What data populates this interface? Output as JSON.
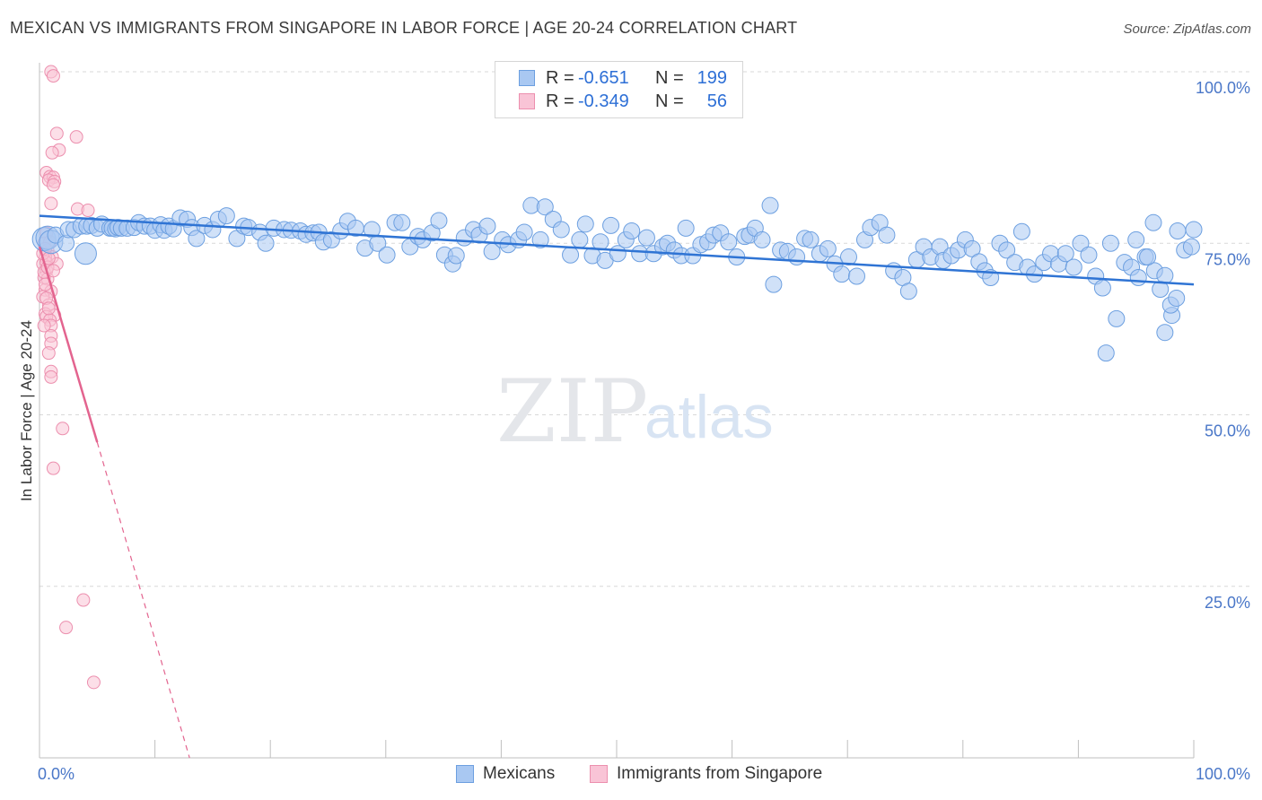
{
  "title": "MEXICAN VS IMMIGRANTS FROM SINGAPORE IN LABOR FORCE | AGE 20-24 CORRELATION CHART",
  "source": "Source: ZipAtlas.com",
  "watermark": {
    "zip": "ZIP",
    "atlas": "atlas"
  },
  "legend": {
    "rows": [
      {
        "r_label": "R =",
        "r_value": "-0.651",
        "n_label": "N =",
        "n_value": "199",
        "color": "#a9c8f2",
        "border": "#6c9fe0"
      },
      {
        "r_label": "R =",
        "r_value": "-0.349",
        "n_label": "N =",
        "n_value": "56",
        "color": "#f9c4d6",
        "border": "#ec8fae"
      }
    ]
  },
  "bottom_legend": [
    {
      "label": "Mexicans",
      "color": "#a9c8f2",
      "border": "#6c9fe0"
    },
    {
      "label": "Immigrants from Singapore",
      "color": "#f9c4d6",
      "border": "#ec8fae"
    }
  ],
  "chart_data": {
    "type": "scatter",
    "ylabel": "In Labor Force | Age 20-24",
    "xlabel": "",
    "xlim": [
      0,
      100
    ],
    "ylim": [
      0,
      100
    ],
    "x_tick_labels": [
      "0.0%",
      "100.0%"
    ],
    "y_tick_labels": [
      "100.0%",
      "75.0%",
      "50.0%",
      "25.0%"
    ],
    "y_tick_values": [
      100,
      75,
      50,
      25
    ],
    "grid": "horizontal dashed",
    "series": [
      {
        "name": "Mexicans",
        "color": "#6c9fe0",
        "fill": "#a9c8f2",
        "trend": {
          "x": [
            0,
            100
          ],
          "y": [
            79.0,
            69.0
          ]
        },
        "points": [
          [
            0.4,
            75.6
          ],
          [
            0.7,
            75.8
          ],
          [
            1.0,
            75.2
          ],
          [
            1.4,
            76.2
          ],
          [
            2.3,
            75.0
          ],
          [
            2.5,
            77.0
          ],
          [
            3.0,
            77.0
          ],
          [
            3.6,
            77.5
          ],
          [
            4.1,
            77.5
          ],
          [
            4.5,
            77.6
          ],
          [
            5.0,
            77.2
          ],
          [
            5.4,
            77.8
          ],
          [
            6.1,
            77.2
          ],
          [
            6.3,
            77.2
          ],
          [
            6.6,
            77.1
          ],
          [
            6.8,
            77.3
          ],
          [
            7.1,
            77.2
          ],
          [
            7.6,
            77.2
          ],
          [
            8.2,
            77.3
          ],
          [
            8.6,
            78.0
          ],
          [
            9.1,
            77.5
          ],
          [
            9.6,
            77.5
          ],
          [
            10.0,
            76.9
          ],
          [
            10.5,
            77.7
          ],
          [
            10.8,
            76.9
          ],
          [
            11.2,
            77.5
          ],
          [
            11.6,
            77.1
          ],
          [
            12.2,
            78.7
          ],
          [
            12.8,
            78.5
          ],
          [
            13.2,
            77.3
          ],
          [
            13.6,
            75.7
          ],
          [
            14.3,
            77.6
          ],
          [
            15.0,
            77.0
          ],
          [
            15.5,
            78.5
          ],
          [
            16.2,
            79.0
          ],
          [
            17.1,
            75.7
          ],
          [
            17.7,
            77.5
          ],
          [
            18.1,
            77.3
          ],
          [
            19.1,
            76.6
          ],
          [
            19.6,
            75.0
          ],
          [
            20.3,
            77.2
          ],
          [
            21.2,
            77.0
          ],
          [
            21.8,
            76.9
          ],
          [
            22.6,
            76.8
          ],
          [
            23.1,
            76.3
          ],
          [
            23.7,
            76.5
          ],
          [
            24.2,
            76.6
          ],
          [
            24.6,
            75.2
          ],
          [
            25.3,
            75.5
          ],
          [
            26.1,
            76.8
          ],
          [
            26.7,
            78.2
          ],
          [
            27.4,
            77.2
          ],
          [
            28.2,
            74.3
          ],
          [
            28.8,
            77.0
          ],
          [
            29.3,
            75.0
          ],
          [
            30.1,
            73.3
          ],
          [
            30.8,
            78.0
          ],
          [
            31.4,
            78.0
          ],
          [
            32.1,
            74.5
          ],
          [
            32.8,
            76.0
          ],
          [
            33.2,
            75.5
          ],
          [
            34.0,
            76.5
          ],
          [
            34.6,
            78.3
          ],
          [
            35.1,
            73.3
          ],
          [
            35.8,
            72.0
          ],
          [
            36.1,
            73.2
          ],
          [
            36.8,
            75.8
          ],
          [
            37.6,
            77.0
          ],
          [
            38.1,
            76.2
          ],
          [
            38.8,
            77.5
          ],
          [
            39.2,
            73.8
          ],
          [
            40.1,
            75.5
          ],
          [
            40.6,
            74.8
          ],
          [
            41.5,
            75.5
          ],
          [
            42.0,
            76.6
          ],
          [
            42.6,
            80.5
          ],
          [
            43.4,
            75.5
          ],
          [
            43.8,
            80.3
          ],
          [
            44.5,
            78.5
          ],
          [
            45.2,
            77.0
          ],
          [
            46.0,
            73.3
          ],
          [
            46.8,
            75.5
          ],
          [
            47.3,
            77.8
          ],
          [
            47.9,
            73.2
          ],
          [
            48.6,
            75.2
          ],
          [
            49.0,
            72.5
          ],
          [
            49.5,
            77.6
          ],
          [
            50.1,
            73.5
          ],
          [
            50.8,
            75.5
          ],
          [
            51.3,
            76.8
          ],
          [
            52.0,
            73.5
          ],
          [
            52.6,
            75.8
          ],
          [
            53.2,
            73.5
          ],
          [
            54.0,
            74.5
          ],
          [
            54.4,
            75.0
          ],
          [
            55.0,
            74.0
          ],
          [
            55.6,
            73.2
          ],
          [
            56.0,
            77.2
          ],
          [
            56.6,
            73.2
          ],
          [
            57.3,
            74.8
          ],
          [
            57.9,
            75.2
          ],
          [
            58.4,
            76.2
          ],
          [
            59.0,
            76.5
          ],
          [
            59.7,
            75.2
          ],
          [
            60.4,
            73.0
          ],
          [
            61.1,
            76.0
          ],
          [
            61.5,
            76.2
          ],
          [
            62.0,
            77.2
          ],
          [
            62.6,
            75.5
          ],
          [
            63.3,
            80.5
          ],
          [
            63.6,
            69.0
          ],
          [
            64.2,
            74.0
          ],
          [
            64.8,
            73.8
          ],
          [
            65.6,
            73.0
          ],
          [
            66.3,
            75.7
          ],
          [
            66.8,
            75.5
          ],
          [
            67.6,
            73.5
          ],
          [
            68.3,
            74.2
          ],
          [
            68.9,
            72.0
          ],
          [
            69.5,
            70.5
          ],
          [
            70.1,
            73.0
          ],
          [
            70.8,
            70.2
          ],
          [
            71.5,
            75.5
          ],
          [
            72.0,
            77.3
          ],
          [
            72.8,
            78.0
          ],
          [
            73.4,
            76.2
          ],
          [
            74.0,
            71.0
          ],
          [
            74.8,
            70.0
          ],
          [
            75.3,
            68.0
          ],
          [
            76.0,
            72.6
          ],
          [
            76.6,
            74.5
          ],
          [
            77.2,
            73.0
          ],
          [
            78.0,
            74.5
          ],
          [
            78.3,
            72.5
          ],
          [
            79.0,
            73.2
          ],
          [
            79.6,
            74.0
          ],
          [
            80.2,
            75.5
          ],
          [
            80.8,
            74.2
          ],
          [
            81.4,
            72.3
          ],
          [
            81.9,
            71.0
          ],
          [
            82.4,
            70.0
          ],
          [
            83.2,
            75.0
          ],
          [
            83.8,
            74.0
          ],
          [
            84.5,
            72.2
          ],
          [
            85.1,
            76.7
          ],
          [
            85.6,
            71.5
          ],
          [
            86.2,
            70.5
          ],
          [
            87.0,
            72.2
          ],
          [
            87.6,
            73.5
          ],
          [
            88.3,
            72.0
          ],
          [
            88.9,
            73.5
          ],
          [
            89.6,
            71.5
          ],
          [
            90.2,
            75.0
          ],
          [
            90.9,
            73.3
          ],
          [
            91.5,
            70.2
          ],
          [
            92.1,
            68.5
          ],
          [
            92.8,
            75.0
          ],
          [
            93.3,
            64.0
          ],
          [
            94.0,
            72.2
          ],
          [
            94.6,
            71.5
          ],
          [
            95.2,
            70.0
          ],
          [
            95.8,
            73.0
          ],
          [
            96.6,
            71.0
          ],
          [
            97.1,
            68.3
          ],
          [
            97.5,
            70.3
          ],
          [
            98.1,
            64.5
          ],
          [
            98.6,
            76.8
          ],
          [
            99.2,
            74.0
          ],
          [
            99.8,
            74.5
          ],
          [
            100.0,
            77.0
          ],
          [
            92.4,
            59.0
          ],
          [
            95.0,
            75.5
          ],
          [
            96.0,
            73.0
          ],
          [
            96.5,
            78.0
          ],
          [
            97.5,
            62.0
          ],
          [
            98.0,
            66.0
          ],
          [
            98.5,
            67.0
          ]
        ]
      },
      {
        "name": "Immigrants from Singapore",
        "color": "#ec8fae",
        "fill": "#f9c4d6",
        "trend": {
          "x": [
            0,
            5
          ],
          "y": [
            74.5,
            46.0
          ]
        },
        "trend_dashed": {
          "x": [
            5,
            13
          ],
          "y": [
            46.0,
            0
          ]
        },
        "points": [
          [
            1.0,
            100.0
          ],
          [
            1.2,
            99.4
          ],
          [
            1.5,
            91.0
          ],
          [
            1.7,
            88.6
          ],
          [
            3.2,
            90.5
          ],
          [
            1.1,
            88.2
          ],
          [
            0.6,
            85.3
          ],
          [
            0.9,
            84.7
          ],
          [
            1.2,
            84.6
          ],
          [
            0.8,
            84.2
          ],
          [
            1.3,
            84.0
          ],
          [
            1.2,
            83.5
          ],
          [
            3.3,
            80.0
          ],
          [
            4.2,
            79.8
          ],
          [
            1.0,
            80.8
          ],
          [
            0.6,
            76.5
          ],
          [
            0.4,
            75.0
          ],
          [
            0.7,
            74.0
          ],
          [
            1.1,
            73.0
          ],
          [
            0.5,
            73.0
          ],
          [
            0.3,
            72.0
          ],
          [
            0.6,
            72.2
          ],
          [
            1.5,
            72.0
          ],
          [
            0.6,
            71.0
          ],
          [
            0.4,
            70.0
          ],
          [
            0.7,
            69.8
          ],
          [
            0.5,
            68.2
          ],
          [
            1.0,
            68.0
          ],
          [
            0.3,
            67.2
          ],
          [
            0.8,
            66.0
          ],
          [
            0.5,
            64.7
          ],
          [
            1.3,
            64.5
          ],
          [
            0.6,
            64.3
          ],
          [
            0.9,
            63.8
          ],
          [
            1.0,
            63.0
          ],
          [
            1.0,
            61.5
          ],
          [
            1.0,
            60.4
          ],
          [
            0.8,
            59.0
          ],
          [
            1.0,
            56.3
          ],
          [
            1.0,
            55.5
          ],
          [
            2.0,
            48.0
          ],
          [
            1.2,
            42.2
          ],
          [
            3.8,
            23.0
          ],
          [
            2.3,
            19.0
          ],
          [
            4.7,
            11.0
          ],
          [
            0.4,
            70.8
          ],
          [
            0.7,
            71.5
          ],
          [
            0.3,
            73.5
          ],
          [
            0.9,
            75.2
          ],
          [
            0.5,
            74.2
          ],
          [
            0.8,
            72.8
          ],
          [
            1.2,
            71.0
          ],
          [
            0.5,
            69.0
          ],
          [
            0.6,
            67.0
          ],
          [
            0.8,
            65.5
          ],
          [
            0.4,
            63.0
          ]
        ]
      }
    ]
  }
}
